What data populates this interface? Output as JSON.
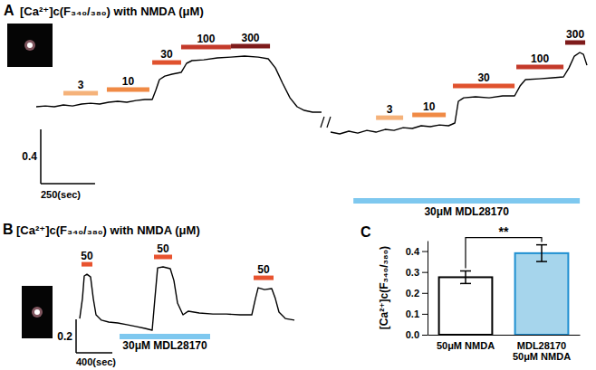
{
  "chart_data": [
    {
      "type": "line",
      "panel": "A",
      "title": "[Ca²⁺]c(F₃₄₀/₃₈₀) with NMDA (μM)",
      "color": "#000000",
      "x": [
        0,
        42,
        83,
        125,
        167,
        209,
        250,
        292,
        334,
        375,
        417,
        459,
        500,
        534,
        550,
        567,
        592,
        625,
        667,
        692,
        717,
        771,
        834,
        896,
        959,
        1022,
        1068,
        1101,
        1134,
        1168,
        1201,
        1234,
        1272,
        1313,
        1334,
        1355,
        1397,
        1439,
        1480,
        1522,
        1564,
        1606,
        1647,
        1689,
        1731,
        1772,
        1814,
        1856,
        1898,
        1927,
        1943,
        1968,
        2022,
        2085,
        2147,
        2202,
        2227,
        2252,
        2314,
        2377,
        2427,
        2452,
        2477,
        2502,
        2519,
        2535
      ],
      "values": [
        0.547,
        0.553,
        0.547,
        0.56,
        0.553,
        0.567,
        0.573,
        0.567,
        0.58,
        0.587,
        0.58,
        0.593,
        0.6,
        0.6,
        0.667,
        0.747,
        0.773,
        0.787,
        0.8,
        0.867,
        0.887,
        0.893,
        0.907,
        0.913,
        0.92,
        0.913,
        0.9,
        0.833,
        0.72,
        0.613,
        0.547,
        0.52,
        0.507,
        0.507,
        null,
        0.36,
        0.347,
        0.367,
        0.353,
        0.373,
        0.36,
        0.38,
        0.373,
        0.393,
        0.387,
        0.407,
        0.4,
        0.413,
        0.407,
        0.427,
        0.587,
        0.613,
        0.62,
        0.613,
        0.627,
        0.627,
        0.7,
        0.747,
        0.753,
        0.76,
        0.767,
        0.833,
        0.92,
        0.947,
        0.933,
        0.853
      ],
      "stimuli": [
        {
          "value": 3,
          "x": [
            125,
            284
          ],
          "color": "#f5b27a"
        },
        {
          "value": 10,
          "x": [
            325,
            521
          ],
          "color": "#f08a45"
        },
        {
          "value": 30,
          "x": [
            534,
            667
          ],
          "color": "#e0522e"
        },
        {
          "value": 100,
          "x": [
            667,
            896
          ],
          "color": "#c43a2a"
        },
        {
          "value": 300,
          "x": [
            896,
            1076
          ],
          "color": "#7e1b1b"
        },
        {
          "value": 3,
          "x": [
            1564,
            1689
          ],
          "color": "#f5b27a"
        },
        {
          "value": 10,
          "x": [
            1731,
            1885
          ],
          "color": "#f08a45"
        },
        {
          "value": 30,
          "x": [
            1918,
            2202
          ],
          "color": "#e0522e"
        },
        {
          "value": 100,
          "x": [
            2210,
            2427
          ],
          "color": "#c43a2a"
        },
        {
          "value": 300,
          "x": [
            2435,
            2527
          ],
          "color": "#7e1b1b"
        }
      ],
      "treatment": {
        "label": "30μM MDL28170",
        "x": [
          1460,
          2502
        ],
        "color": "#7ec8ef"
      },
      "scale_bar": {
        "x": {
          "value": 250,
          "label": "250(sec)"
        },
        "y": 0.4
      }
    },
    {
      "type": "line",
      "panel": "B",
      "title": "[Ca²⁺]c(F₃₄₀/₃₈₀) with NMDA (μM)",
      "color": "#000000",
      "x": [
        0,
        30,
        50,
        80,
        120,
        150,
        180,
        240,
        320,
        420,
        520,
        620,
        720,
        800,
        830,
        860,
        920,
        1000,
        1040,
        1080,
        1140,
        1200,
        1320,
        1470,
        1620,
        1770,
        1900,
        1940,
        1970,
        2040,
        2120,
        2160,
        2200,
        2270,
        2370
      ],
      "values": [
        0.259,
        0.378,
        0.514,
        0.524,
        0.508,
        0.378,
        0.281,
        0.249,
        0.238,
        0.232,
        0.222,
        0.211,
        0.2,
        0.189,
        0.378,
        0.562,
        0.568,
        0.557,
        0.486,
        0.351,
        0.281,
        0.303,
        0.292,
        0.286,
        0.286,
        0.281,
        0.281,
        0.378,
        0.443,
        0.432,
        0.438,
        0.378,
        0.297,
        0.259,
        0.249
      ],
      "stimuli": [
        {
          "value": 50,
          "x": [
            20,
            140
          ],
          "color": "#e8532f"
        },
        {
          "value": 50,
          "x": [
            820,
            1020
          ],
          "color": "#e8532f"
        },
        {
          "value": 50,
          "x": [
            1920,
            2140
          ],
          "color": "#e8532f"
        }
      ],
      "treatment": {
        "label": "30μM MDL28170",
        "x": [
          440,
          1440
        ],
        "color": "#7ec8ef"
      },
      "scale_bar": {
        "x": {
          "value": 400,
          "label": "400(sec)"
        },
        "y": 0.2
      }
    },
    {
      "type": "bar",
      "panel": "C",
      "ylabel": "[Ca²⁺]c(F₃₄₀/₃₈₀)",
      "categories": [
        "50μM NMDA",
        "MDL28170\n50μM NMDA"
      ],
      "values": [
        0.275,
        0.39
      ],
      "errors": [
        0.03,
        0.04
      ],
      "colors": [
        "#ffffff",
        "#a6d5ec"
      ],
      "ylim": [
        0,
        0.45
      ],
      "yticks": [
        {
          "value": 0,
          "label": "0.0"
        },
        0.1,
        0.2,
        0.3,
        0.4
      ],
      "annotations": [
        {
          "text": "**",
          "between": [
            0,
            1
          ]
        }
      ]
    }
  ]
}
